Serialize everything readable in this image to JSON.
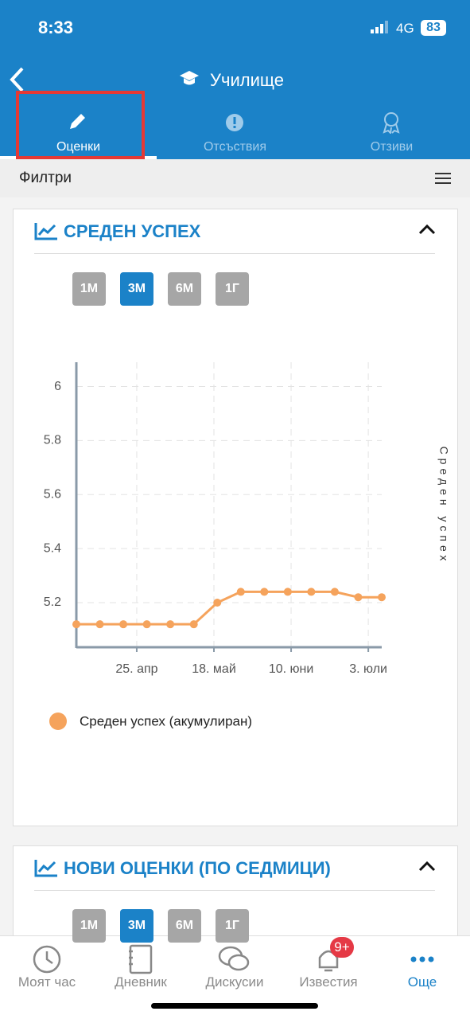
{
  "status_bar": {
    "time": "8:33",
    "network": "4G",
    "battery": "83"
  },
  "header": {
    "title": "Училище"
  },
  "tabs": [
    "Оценки",
    "Отсъствия",
    "Отзиви"
  ],
  "filter_bar": {
    "label": "Филтри"
  },
  "cards": [
    {
      "title": "СРЕДЕН УСПЕХ",
      "ranges": [
        "1М",
        "3М",
        "6М",
        "1Г"
      ]
    },
    {
      "title": "НОВИ ОЦЕНКИ (ПО СЕДМИЦИ)",
      "ranges": [
        "1М",
        "3М",
        "6М",
        "1Г"
      ]
    }
  ],
  "chart_data": {
    "type": "line",
    "x": [
      0,
      7,
      14,
      21,
      28,
      35,
      42,
      49,
      56,
      63,
      70,
      77,
      84,
      91
    ],
    "series": [
      {
        "name": "Среден успех (акумулиран)",
        "color": "#f5a35c",
        "values": [
          5.12,
          5.12,
          5.12,
          5.12,
          5.12,
          5.12,
          5.2,
          5.24,
          5.24,
          5.24,
          5.24,
          5.24,
          5.22,
          5.22
        ]
      }
    ],
    "xlim": [
      0,
      91
    ],
    "xticks": [
      {
        "value": 18,
        "label": "25. апр"
      },
      {
        "value": 41,
        "label": "18. май"
      },
      {
        "value": 64,
        "label": "10. юни"
      },
      {
        "value": 87,
        "label": "3. юли"
      }
    ],
    "ylim": [
      5.035,
      6.09
    ],
    "yticks": [
      5.2,
      5.4,
      5.6,
      5.8,
      6
    ],
    "y_label": "Среден успех",
    "grid": true
  },
  "bottom_nav": {
    "items": [
      "Моят час",
      "Дневник",
      "Дискусии",
      "Известия",
      "Още"
    ],
    "badge": "9+"
  }
}
